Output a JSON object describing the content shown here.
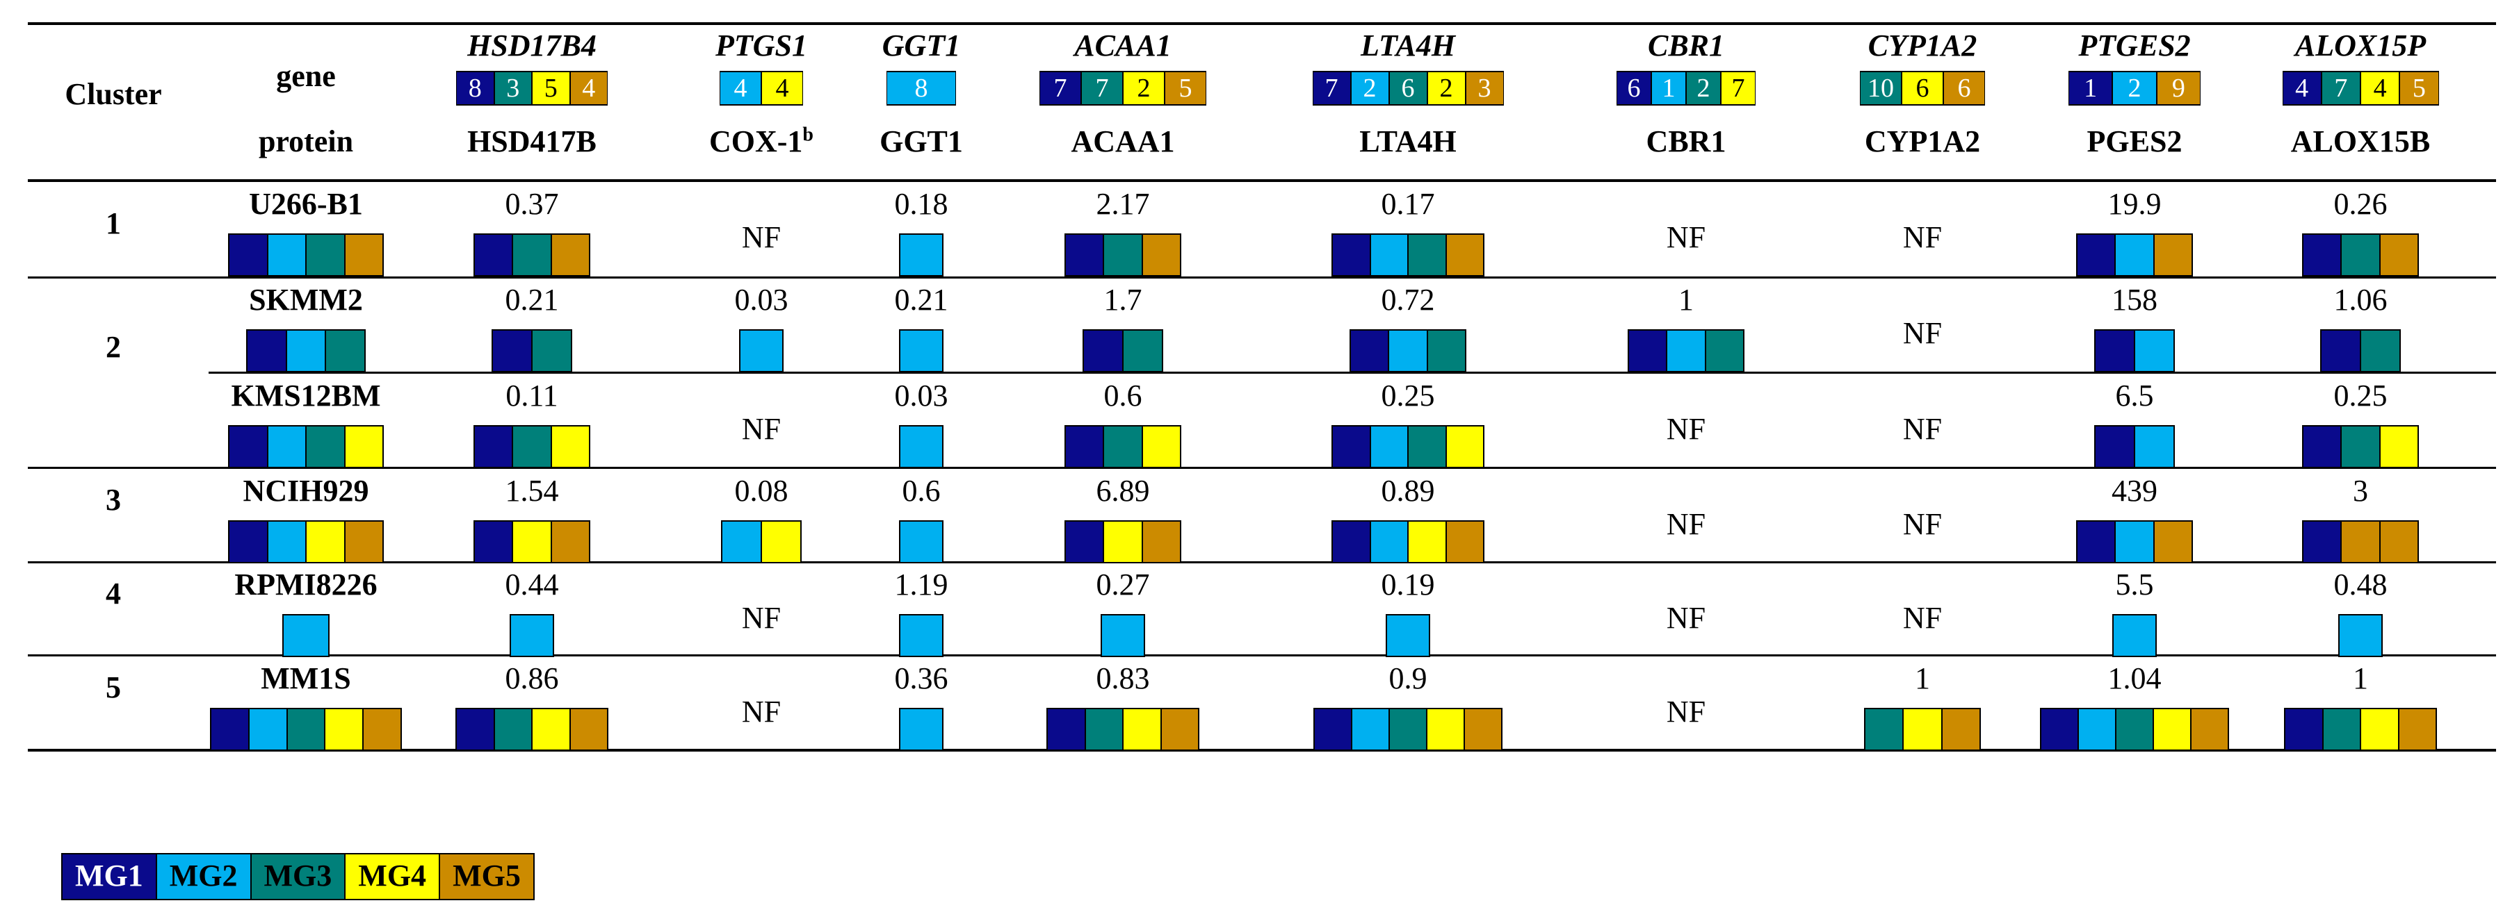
{
  "colors": {
    "MG1": "#0a0a8c",
    "MG2": "#00b0f0",
    "MG3": "#00807a",
    "MG4": "#ffff00",
    "MG5": "#cc8b00"
  },
  "header": {
    "cluster": "Cluster",
    "gene": "gene",
    "protein": "protein"
  },
  "columns": [
    {
      "gene": "HSD17B4",
      "protein": "HSD417B",
      "counts": [
        {
          "mg": "MG1",
          "n": "8"
        },
        {
          "mg": "MG3",
          "n": "3"
        },
        {
          "mg": "MG4",
          "n": "5"
        },
        {
          "mg": "MG5",
          "n": "4"
        }
      ]
    },
    {
      "gene": "PTGS1",
      "protein": "COX-1",
      "sup": "b",
      "counts": [
        {
          "mg": "MG2",
          "n": "4"
        },
        {
          "mg": "MG4",
          "n": "4"
        }
      ]
    },
    {
      "gene": "GGT1",
      "protein": "GGT1",
      "counts": [
        {
          "mg": "MG2",
          "n": "8"
        }
      ]
    },
    {
      "gene": "ACAA1",
      "protein": "ACAA1",
      "counts": [
        {
          "mg": "MG1",
          "n": "7"
        },
        {
          "mg": "MG3",
          "n": "7"
        },
        {
          "mg": "MG4",
          "n": "2"
        },
        {
          "mg": "MG5",
          "n": "5"
        }
      ]
    },
    {
      "gene": "LTA4H",
      "protein": "LTA4H",
      "counts": [
        {
          "mg": "MG1",
          "n": "7"
        },
        {
          "mg": "MG2",
          "n": "2"
        },
        {
          "mg": "MG3",
          "n": "6"
        },
        {
          "mg": "MG4",
          "n": "2"
        },
        {
          "mg": "MG5",
          "n": "3"
        }
      ]
    },
    {
      "gene": "CBR1",
      "protein": "CBR1",
      "counts": [
        {
          "mg": "MG1",
          "n": "6"
        },
        {
          "mg": "MG2",
          "n": "1"
        },
        {
          "mg": "MG3",
          "n": "2"
        },
        {
          "mg": "MG4",
          "n": "7"
        }
      ]
    },
    {
      "gene": "CYP1A2",
      "protein": "CYP1A2",
      "counts": [
        {
          "mg": "MG3",
          "n": "10"
        },
        {
          "mg": "MG4",
          "n": "6"
        },
        {
          "mg": "MG5",
          "n": "6"
        }
      ]
    },
    {
      "gene": "PTGES2",
      "protein": "PGES2",
      "counts": [
        {
          "mg": "MG1",
          "n": "1"
        },
        {
          "mg": "MG2",
          "n": "2"
        },
        {
          "mg": "MG5",
          "n": "9"
        }
      ]
    },
    {
      "gene": "ALOX15P",
      "protein": "ALOX15B",
      "counts": [
        {
          "mg": "MG1",
          "n": "4"
        },
        {
          "mg": "MG3",
          "n": "7"
        },
        {
          "mg": "MG4",
          "n": "4"
        },
        {
          "mg": "MG5",
          "n": "5"
        }
      ]
    }
  ],
  "rows": [
    {
      "cluster": "1",
      "cell": "U266-B1",
      "cell_mg": [
        "MG1",
        "MG2",
        "MG3",
        "MG5"
      ],
      "values": [
        {
          "v": "0.37",
          "mg": [
            "MG1",
            "MG3",
            "MG5"
          ]
        },
        {
          "v": "NF"
        },
        {
          "v": "0.18",
          "mg": [
            "MG2"
          ]
        },
        {
          "v": "2.17",
          "mg": [
            "MG1",
            "MG3",
            "MG5"
          ]
        },
        {
          "v": "0.17",
          "mg": [
            "MG1",
            "MG2",
            "MG3",
            "MG5"
          ]
        },
        {
          "v": "NF"
        },
        {
          "v": "NF"
        },
        {
          "v": "19.9",
          "mg": [
            "MG1",
            "MG2",
            "MG5"
          ]
        },
        {
          "v": "0.26",
          "mg": [
            "MG1",
            "MG3",
            "MG5"
          ]
        }
      ]
    },
    {
      "cluster": "2",
      "cell": "SKMM2",
      "cell_mg": [
        "MG1",
        "MG2",
        "MG3"
      ],
      "values": [
        {
          "v": "0.21",
          "mg": [
            "MG1",
            "MG3"
          ]
        },
        {
          "v": "0.03",
          "mg": [
            "MG2"
          ]
        },
        {
          "v": "0.21",
          "mg": [
            "MG2"
          ]
        },
        {
          "v": "1.7",
          "mg": [
            "MG1",
            "MG3"
          ]
        },
        {
          "v": "0.72",
          "mg": [
            "MG1",
            "MG2",
            "MG3"
          ]
        },
        {
          "v": "1",
          "mg": [
            "MG1",
            "MG2",
            "MG3"
          ]
        },
        {
          "v": "NF"
        },
        {
          "v": "158",
          "mg": [
            "MG1",
            "MG2"
          ]
        },
        {
          "v": "1.06",
          "mg": [
            "MG1",
            "MG3"
          ]
        }
      ]
    },
    {
      "cluster": "",
      "cell": "KMS12BM",
      "cell_mg": [
        "MG1",
        "MG2",
        "MG3",
        "MG4"
      ],
      "values": [
        {
          "v": "0.11",
          "mg": [
            "MG1",
            "MG3",
            "MG4"
          ]
        },
        {
          "v": "NF"
        },
        {
          "v": "0.03",
          "mg": [
            "MG2"
          ]
        },
        {
          "v": "0.6",
          "mg": [
            "MG1",
            "MG3",
            "MG4"
          ]
        },
        {
          "v": "0.25",
          "mg": [
            "MG1",
            "MG2",
            "MG3",
            "MG4"
          ]
        },
        {
          "v": "NF"
        },
        {
          "v": "NF"
        },
        {
          "v": "6.5",
          "mg": [
            "MG1",
            "MG2"
          ]
        },
        {
          "v": "0.25",
          "mg": [
            "MG1",
            "MG3",
            "MG4"
          ]
        }
      ]
    },
    {
      "cluster": "3",
      "cell": "NCIH929",
      "cell_mg": [
        "MG1",
        "MG2",
        "MG4",
        "MG5"
      ],
      "values": [
        {
          "v": "1.54",
          "mg": [
            "MG1",
            "MG4",
            "MG5"
          ]
        },
        {
          "v": "0.08",
          "mg": [
            "MG2",
            "MG4"
          ]
        },
        {
          "v": "0.6",
          "mg": [
            "MG2"
          ]
        },
        {
          "v": "6.89",
          "mg": [
            "MG1",
            "MG4",
            "MG5"
          ]
        },
        {
          "v": "0.89",
          "mg": [
            "MG1",
            "MG2",
            "MG4",
            "MG5"
          ]
        },
        {
          "v": "NF"
        },
        {
          "v": "NF"
        },
        {
          "v": "439",
          "mg": [
            "MG1",
            "MG2",
            "MG5"
          ]
        },
        {
          "v": "3",
          "mg": [
            "MG1",
            "MG5",
            "MG5"
          ]
        }
      ]
    },
    {
      "cluster": "4",
      "cell": "RPMI8226",
      "cell_mg": [
        "MG2"
      ],
      "values": [
        {
          "v": "0.44",
          "mg": [
            "MG2"
          ]
        },
        {
          "v": "NF"
        },
        {
          "v": "1.19",
          "mg": [
            "MG2"
          ]
        },
        {
          "v": "0.27",
          "mg": [
            "MG2"
          ]
        },
        {
          "v": "0.19",
          "mg": [
            "MG2"
          ]
        },
        {
          "v": "NF"
        },
        {
          "v": "NF"
        },
        {
          "v": "5.5",
          "mg": [
            "MG2"
          ]
        },
        {
          "v": "0.48",
          "mg": [
            "MG2"
          ]
        }
      ]
    },
    {
      "cluster": "5",
      "cell": "MM1S",
      "cell_mg": [
        "MG1",
        "MG2",
        "MG3",
        "MG4",
        "MG5"
      ],
      "values": [
        {
          "v": "0.86",
          "mg": [
            "MG1",
            "MG3",
            "MG4",
            "MG5"
          ]
        },
        {
          "v": "NF"
        },
        {
          "v": "0.36",
          "mg": [
            "MG2"
          ]
        },
        {
          "v": "0.83",
          "mg": [
            "MG1",
            "MG3",
            "MG4",
            "MG5"
          ]
        },
        {
          "v": "0.9",
          "mg": [
            "MG1",
            "MG2",
            "MG3",
            "MG4",
            "MG5"
          ]
        },
        {
          "v": "NF"
        },
        {
          "v": "1",
          "mg": [
            "MG3",
            "MG4",
            "MG5"
          ]
        },
        {
          "v": "1.04",
          "mg": [
            "MG1",
            "MG2",
            "MG3",
            "MG4",
            "MG5"
          ]
        },
        {
          "v": "1",
          "mg": [
            "MG1",
            "MG3",
            "MG4",
            "MG5"
          ]
        }
      ]
    }
  ],
  "legend": [
    "MG1",
    "MG2",
    "MG3",
    "MG4",
    "MG5"
  ]
}
